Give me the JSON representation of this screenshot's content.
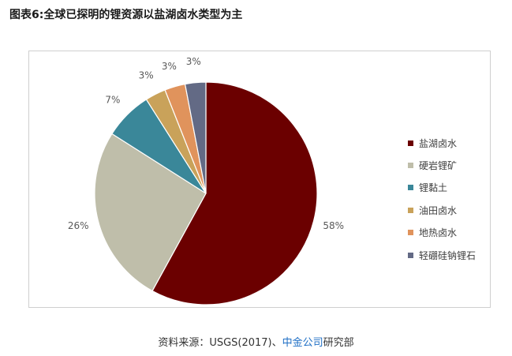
{
  "title": "图表6:全球已探明的锂资源以盐湖卤水类型为主",
  "source": {
    "prefix": "资料来源：USGS(2017)、",
    "link": "中金公司",
    "suffix": "研究部"
  },
  "chart_data": {
    "type": "pie",
    "title": "图表6:全球已探明的锂资源以盐湖卤水类型为主",
    "legend_position": "right",
    "categories": [
      "盐湖卤水",
      "硬岩锂矿",
      "锂黏土",
      "油田卤水",
      "地热卤水",
      "轻硼硅钠锂石"
    ],
    "values": [
      58,
      26,
      7,
      3,
      3,
      3
    ],
    "labels": [
      "58%",
      "26%",
      "7%",
      "3%",
      "3%",
      "3%"
    ],
    "colors": [
      "#6b0000",
      "#bfbeaa",
      "#3a8799",
      "#c9a25a",
      "#e0935c",
      "#636a85"
    ]
  }
}
